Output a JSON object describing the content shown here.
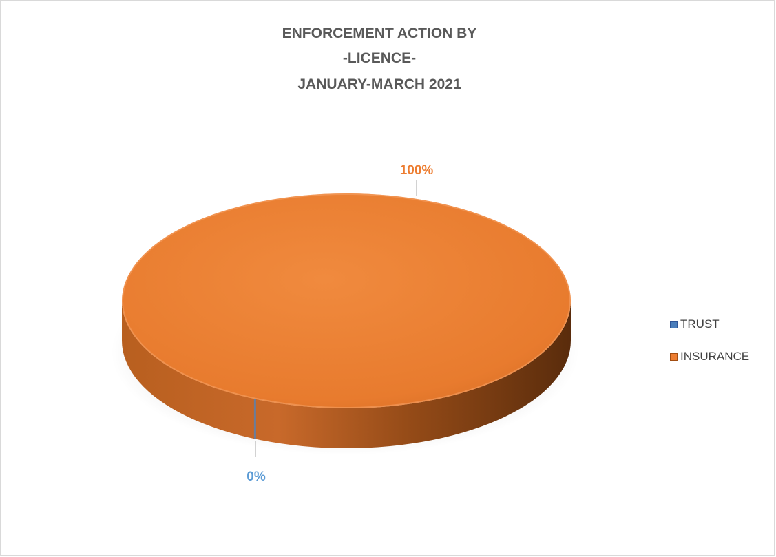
{
  "chart_data": {
    "type": "pie",
    "title_lines": [
      "ENFORCEMENT ACTION BY",
      "-LICENCE-",
      "JANUARY-MARCH 2021"
    ],
    "categories": [
      "TRUST",
      "INSURANCE"
    ],
    "values": [
      0,
      100
    ],
    "data_labels": [
      "0%",
      "100%"
    ],
    "colors": [
      "#4a7ebb",
      "#ed7d31"
    ],
    "label_colors": [
      "#5b9bd5",
      "#ed7d31"
    ],
    "legend_position": "right",
    "style": "3d"
  }
}
